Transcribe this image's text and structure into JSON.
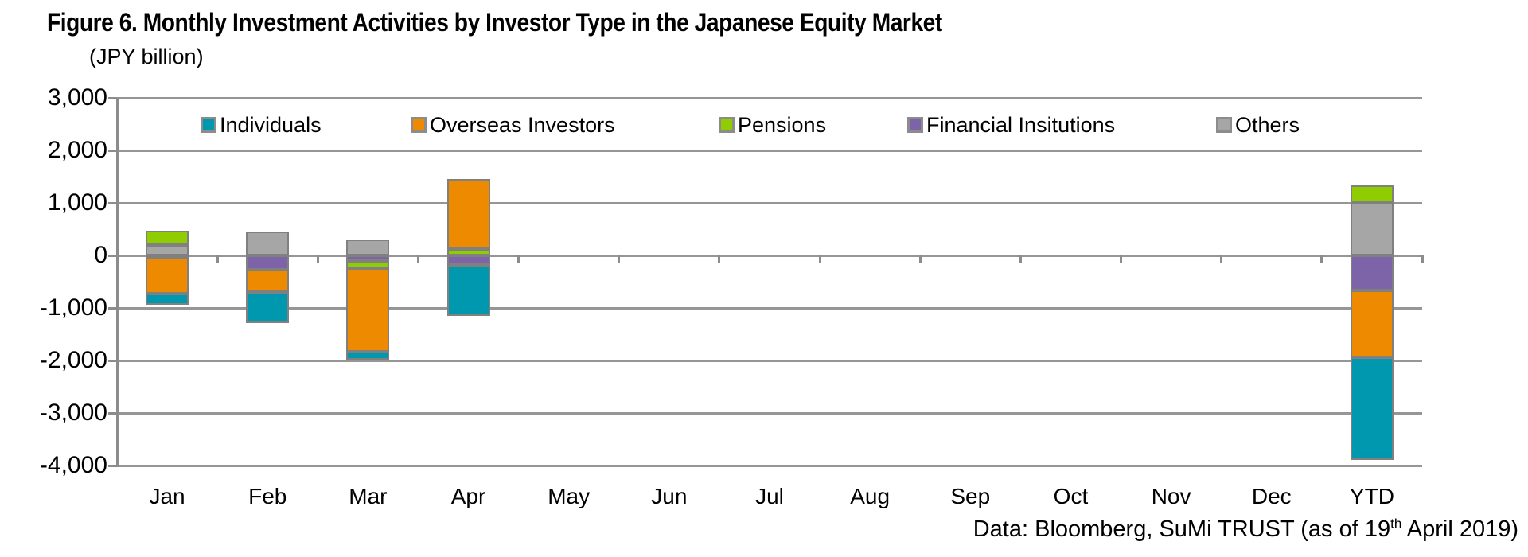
{
  "title": "Figure 6. Monthly Investment Activities by Investor Type in the Japanese Equity Market",
  "unit_label": "(JPY billion)",
  "footer": {
    "prefix": "Data: Bloomberg, SuMi TRUST (as of 19",
    "superscript": "th",
    "suffix": " April 2019)"
  },
  "chart_data": {
    "type": "bar",
    "stacked": true,
    "title": "Figure 6. Monthly Investment Activities by Investor Type in the Japanese Equity Market",
    "ylabel": "(JPY billion)",
    "ylim": [
      -4000,
      3000
    ],
    "grid": true,
    "legend_position": "top-inside",
    "categories": [
      "Jan",
      "Feb",
      "Mar",
      "Apr",
      "May",
      "Jun",
      "Jul",
      "Aug",
      "Sep",
      "Oct",
      "Nov",
      "Dec",
      "YTD"
    ],
    "y_ticks": [
      {
        "value": 3000,
        "label": "3,000"
      },
      {
        "value": 2000,
        "label": "2,000"
      },
      {
        "value": 1000,
        "label": "1,000"
      },
      {
        "value": 0,
        "label": "0"
      },
      {
        "value": -1000,
        "label": "-1,000"
      },
      {
        "value": -2000,
        "label": "-2,000"
      },
      {
        "value": -3000,
        "label": "-3,000"
      },
      {
        "value": -4000,
        "label": "-4,000"
      }
    ],
    "series": [
      {
        "name": "Individuals",
        "color": "#0098AE",
        "values": [
          -210,
          -590,
          -150,
          -965,
          0,
          0,
          0,
          0,
          0,
          0,
          0,
          0,
          -1950
        ]
      },
      {
        "name": "Overseas Investors",
        "color": "#EE8A00",
        "values": [
          -690,
          -420,
          -1600,
          1335,
          0,
          0,
          0,
          0,
          0,
          0,
          0,
          0,
          -1280
        ]
      },
      {
        "name": "Pensions",
        "color": "#8FCC00",
        "values": [
          280,
          0,
          -140,
          115,
          0,
          0,
          0,
          0,
          0,
          0,
          0,
          0,
          310
        ]
      },
      {
        "name": "Financial Insitutions",
        "color": "#7D64A8",
        "values": [
          -40,
          -280,
          -100,
          -185,
          0,
          0,
          0,
          0,
          0,
          0,
          0,
          0,
          -660
        ]
      },
      {
        "name": "Others",
        "color": "#A6A6A6",
        "values": [
          190,
          450,
          300,
          0,
          0,
          0,
          0,
          0,
          0,
          0,
          0,
          0,
          1020
        ]
      }
    ],
    "stack_order_from_axis": [
      "Others",
      "Financial Insitutions",
      "Pensions",
      "Overseas Investors",
      "Individuals"
    ]
  }
}
